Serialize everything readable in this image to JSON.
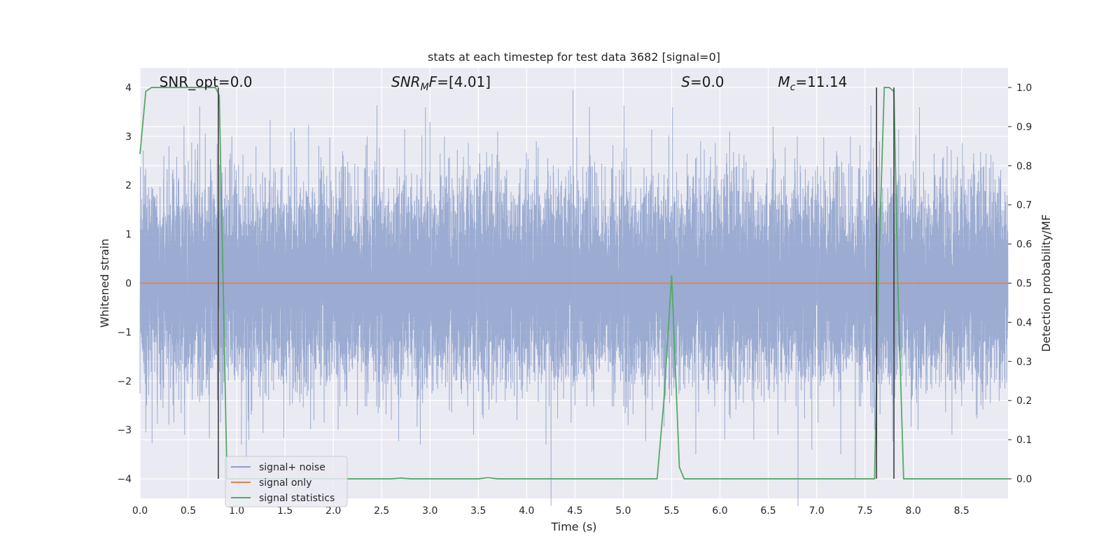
{
  "chart_data": {
    "type": "line",
    "title": "stats at each timestep for test data 3682 [signal=0]",
    "xlabel": "Time (s)",
    "ylabel_left": "Whitened strain",
    "ylabel_right": "Detection probability/MF",
    "xlim": [
      0,
      8.98
    ],
    "ylim_left": [
      -4.4,
      4.4
    ],
    "ylim_right": [
      -0.05,
      1.05
    ],
    "x_ticks": [
      "0.0",
      "0.5",
      "1.0",
      "1.5",
      "2.0",
      "2.5",
      "3.0",
      "3.5",
      "4.0",
      "4.5",
      "5.0",
      "5.5",
      "6.0",
      "6.5",
      "7.0",
      "7.5",
      "8.0",
      "8.5"
    ],
    "x_tick_values": [
      0,
      0.5,
      1.0,
      1.5,
      2.0,
      2.5,
      3.0,
      3.5,
      4.0,
      4.5,
      5.0,
      5.5,
      6.0,
      6.5,
      7.0,
      7.5,
      8.0,
      8.5
    ],
    "y_left_ticks": [
      "−4",
      "−3",
      "−2",
      "−1",
      "0",
      "1",
      "2",
      "3",
      "4"
    ],
    "y_left_tick_values": [
      -4,
      -3,
      -2,
      -1,
      0,
      1,
      2,
      3,
      4
    ],
    "y_right_ticks": [
      "0.0",
      "0.1",
      "0.2",
      "0.3",
      "0.4",
      "0.5",
      "0.6",
      "0.7",
      "0.8",
      "0.9",
      "1.0"
    ],
    "y_right_tick_values": [
      0,
      0.1,
      0.2,
      0.3,
      0.4,
      0.5,
      0.6,
      0.7,
      0.8,
      0.9,
      1.0
    ],
    "grid": true,
    "legend_placement": "lower-left",
    "annotations": [
      {
        "text": "SNR_opt=0.0",
        "x": 0.2,
        "italic": false
      },
      {
        "text": "SNR",
        "sub": "M",
        "rest": "F=[4.01]",
        "x": 2.6,
        "italic": true
      },
      {
        "text": "S",
        "rest": "=0.0",
        "x": 5.6,
        "italic": true
      },
      {
        "text": "M",
        "sub": "c",
        "rest": "=11.14",
        "x": 6.6,
        "italic": true
      }
    ],
    "series": [
      {
        "name": "signal+ noise",
        "color": "#8da0cb",
        "axis": "left",
        "kind": "noise",
        "sample_rate": 2048,
        "amplitude_sigma": 0.95,
        "peaks_top": [
          [
            0.05,
            2.2
          ],
          [
            0.3,
            2.8
          ],
          [
            0.5,
            2.5
          ],
          [
            0.95,
            3.0
          ],
          [
            1.05,
            3.1
          ],
          [
            1.2,
            2.8
          ],
          [
            1.6,
            2.9
          ],
          [
            1.85,
            2.8
          ],
          [
            2.05,
            2.3
          ],
          [
            2.35,
            3.0
          ],
          [
            2.9,
            3.6
          ],
          [
            3.0,
            3.3
          ],
          [
            3.15,
            3.0
          ],
          [
            3.7,
            3.1
          ],
          [
            4.1,
            2.9
          ],
          [
            4.48,
            3.95
          ],
          [
            4.65,
            3.6
          ],
          [
            5.3,
            3.2
          ],
          [
            5.5,
            3.0
          ],
          [
            5.8,
            2.9
          ],
          [
            6.1,
            3.1
          ],
          [
            6.35,
            3.2
          ],
          [
            6.55,
            3.2
          ],
          [
            6.8,
            3.0
          ],
          [
            7.25,
            2.8
          ],
          [
            7.35,
            3.0
          ],
          [
            7.65,
            2.9
          ],
          [
            8.0,
            2.5
          ],
          [
            8.35,
            2.8
          ],
          [
            8.7,
            2.9
          ]
        ],
        "peaks_bottom": [
          [
            0.06,
            -3.05
          ],
          [
            0.35,
            -2.85
          ],
          [
            0.8,
            -2.4
          ],
          [
            1.05,
            -3.3
          ],
          [
            1.1,
            -3.6
          ],
          [
            1.55,
            -2.5
          ],
          [
            1.8,
            -2.8
          ],
          [
            2.05,
            -3.0
          ],
          [
            2.25,
            -2.7
          ],
          [
            2.6,
            -2.8
          ],
          [
            2.9,
            -3.3
          ],
          [
            3.2,
            -2.6
          ],
          [
            3.45,
            -3.1
          ],
          [
            3.9,
            -2.8
          ],
          [
            4.2,
            -3.3
          ],
          [
            4.5,
            -2.5
          ],
          [
            5.05,
            -2.9
          ],
          [
            5.3,
            -2.6
          ],
          [
            5.5,
            -2.3
          ],
          [
            5.75,
            -3.5
          ],
          [
            6.05,
            -3.2
          ],
          [
            6.35,
            -3.2
          ],
          [
            6.6,
            -3.1
          ],
          [
            6.95,
            -3.4
          ],
          [
            7.25,
            -3.5
          ],
          [
            7.4,
            -4.0
          ],
          [
            7.6,
            -3.0
          ],
          [
            8.05,
            -3.0
          ],
          [
            8.4,
            -3.1
          ],
          [
            8.7,
            -2.5
          ]
        ]
      },
      {
        "name": "signal only",
        "color": "#dd8452",
        "axis": "left",
        "kind": "line",
        "x": [
          0,
          8.98
        ],
        "y": [
          0,
          0
        ]
      },
      {
        "name": "signal statistics",
        "color": "#55a868",
        "axis": "right",
        "kind": "line",
        "x": [
          0,
          0.06,
          0.12,
          0.2,
          0.5,
          0.78,
          0.82,
          0.86,
          0.9,
          1.0,
          2.6,
          2.7,
          2.8,
          3.5,
          3.6,
          3.7,
          5.35,
          5.42,
          5.5,
          5.58,
          5.63,
          7.6,
          7.64,
          7.7,
          7.75,
          7.8,
          7.84,
          7.9,
          8.98
        ],
        "y": [
          0.83,
          0.99,
          1.0,
          1.0,
          1.0,
          1.0,
          0.98,
          0.5,
          0.0,
          0.0,
          0.0,
          0.002,
          0.0,
          0.0,
          0.003,
          0.0,
          0.0,
          0.2,
          0.52,
          0.03,
          0.0,
          0.0,
          0.52,
          1.0,
          1.0,
          0.99,
          0.5,
          0.0,
          0.0
        ]
      }
    ],
    "vertical_markers": [
      {
        "x": 0.81,
        "y_from": -4,
        "y_to": 4
      },
      {
        "x": 7.62,
        "y_from": -4,
        "y_to": 4
      },
      {
        "x": 7.8,
        "y_from": -4,
        "y_to": 4
      }
    ],
    "marker_color": "#333333"
  }
}
